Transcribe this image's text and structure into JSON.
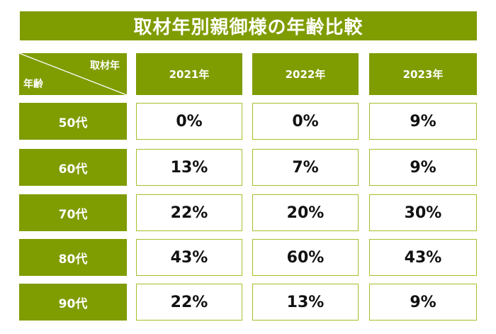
{
  "title": "取材年別親御様の年齢比較",
  "corner": {
    "column_axis_label": "取材年",
    "row_axis_label": "年齢"
  },
  "colors": {
    "header_green": "#7f9c00",
    "cell_border": "#a5bf2a",
    "text_dark": "#111111"
  },
  "chart_data": {
    "type": "table",
    "title": "取材年別親御様の年齢比較",
    "columns": [
      "2021年",
      "2022年",
      "2023年"
    ],
    "rows": [
      {
        "label": "50代",
        "values": [
          "0%",
          "0%",
          "9%"
        ]
      },
      {
        "label": "60代",
        "values": [
          "13%",
          "7%",
          "9%"
        ]
      },
      {
        "label": "70代",
        "values": [
          "22%",
          "20%",
          "30%"
        ]
      },
      {
        "label": "80代",
        "values": [
          "43%",
          "60%",
          "43%"
        ]
      },
      {
        "label": "90代",
        "values": [
          "22%",
          "13%",
          "9%"
        ]
      }
    ]
  }
}
